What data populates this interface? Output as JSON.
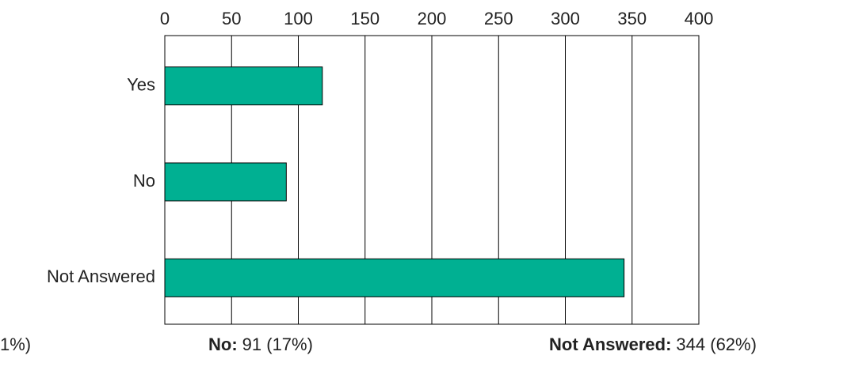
{
  "chart_data": {
    "type": "bar",
    "orientation": "horizontal",
    "categories": [
      "Yes",
      "No",
      "Not Answered"
    ],
    "values": [
      118,
      91,
      344
    ],
    "color": "#00b092",
    "xlim": [
      0,
      400
    ],
    "xticks": [
      0,
      50,
      100,
      150,
      200,
      250,
      300,
      350,
      400
    ],
    "grid": true,
    "summary": [
      {
        "text": "1%)"
      },
      {
        "name": "No:",
        "text": "91 (17%)"
      },
      {
        "name": "Not Answered:",
        "text": "344 (62%)"
      }
    ]
  }
}
